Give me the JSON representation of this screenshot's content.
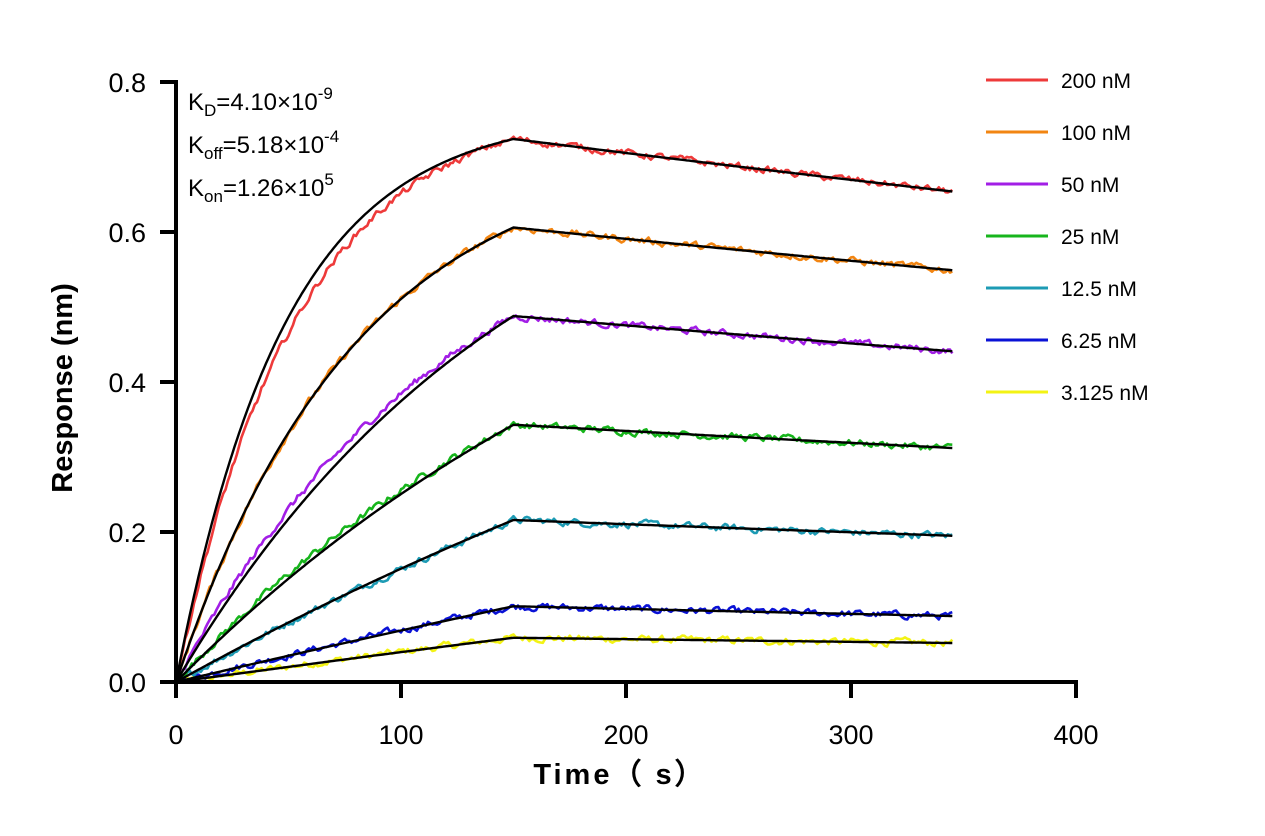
{
  "chart_data": {
    "type": "line",
    "xlabel": "Time（ s）",
    "ylabel": "Response (nm)",
    "xlim": [
      0,
      400
    ],
    "ylim": [
      0,
      0.8
    ],
    "x_ticks": [
      "0",
      "100",
      "200",
      "300",
      "400"
    ],
    "y_ticks": [
      "0.0",
      "0.2",
      "0.4",
      "0.6",
      "0.8"
    ],
    "grid": false,
    "legend_position": "top-right",
    "association_end": 150,
    "time_end": 345,
    "annotations": [
      {
        "main": "K",
        "sub": "D",
        "value": "=4.10×10",
        "sup": "-9"
      },
      {
        "main": "K",
        "sub": "off",
        "value": "=5.18×10",
        "sup": "-4"
      },
      {
        "main": "K",
        "sub": "on",
        "value": "=1.26×10",
        "sup": "5"
      }
    ],
    "fit_color": "#000000",
    "series": [
      {
        "name": "200 nM",
        "color": "#ee3a3a",
        "peak": 0.724,
        "end": 0.654,
        "obs_shape": 0.0185,
        "fit_shape": 0.0205,
        "noise": 0.004
      },
      {
        "name": "100 nM",
        "color": "#f28512",
        "peak": 0.606,
        "end": 0.549,
        "obs_shape": 0.0125,
        "fit_shape": 0.0125,
        "noise": 0.004
      },
      {
        "name": "50 nM",
        "color": "#a21ee6",
        "peak": 0.488,
        "end": 0.441,
        "obs_shape": 0.008,
        "fit_shape": 0.0065,
        "noise": 0.004
      },
      {
        "name": "25 nM",
        "color": "#17b51c",
        "peak": 0.343,
        "end": 0.312,
        "obs_shape": 0.005,
        "fit_shape": 0.004,
        "noise": 0.004
      },
      {
        "name": "12.5 nM",
        "color": "#1d9bb4",
        "peak": 0.216,
        "end": 0.195,
        "obs_shape": 0.002,
        "fit_shape": 0.002,
        "noise": 0.004
      },
      {
        "name": "6.25 nM",
        "color": "#0a12d6",
        "peak": 0.101,
        "end": 0.088,
        "obs_shape": 0.0012,
        "fit_shape": 0.0008,
        "noise": 0.004
      },
      {
        "name": "3.125 nM",
        "color": "#f3f314",
        "peak": 0.059,
        "end": 0.052,
        "obs_shape": 0.0008,
        "fit_shape": 0.0005,
        "noise": 0.004
      }
    ]
  }
}
